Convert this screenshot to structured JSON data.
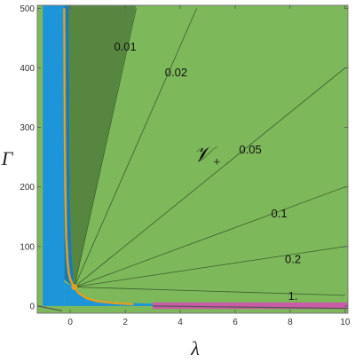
{
  "chart_data": {
    "type": "area",
    "title": "",
    "xlabel": "λ",
    "ylabel": "Γ",
    "xlim": [
      -1.2,
      10.1
    ],
    "ylim": [
      -12,
      505
    ],
    "x_ticks": [
      "0",
      "2",
      "4",
      "6",
      "8",
      "10"
    ],
    "y_ticks": [
      "0",
      "100",
      "200",
      "300",
      "400",
      "500"
    ],
    "grid": false,
    "colors": {
      "light_green": "#7db85a",
      "dark_green": "#568640",
      "blue": "#1d95d8",
      "dark_blue": "#1a7ab8",
      "magenta": "#c95ba7",
      "orange": "#e0a020",
      "contour": "#3b5e2c"
    },
    "region_label": {
      "main": "𝒱",
      "sub": "+"
    },
    "contours": [
      {
        "label": "0.01",
        "end": [
          2.4,
          500
        ],
        "label_at": [
          2.0,
          435
        ]
      },
      {
        "label": "0.02",
        "end": [
          4.6,
          500
        ],
        "label_at": [
          3.85,
          392
        ]
      },
      {
        "label": "0.05",
        "end": [
          10,
          400
        ],
        "label_at": [
          6.55,
          262
        ]
      },
      {
        "label": "0.1",
        "end": [
          10,
          200
        ],
        "label_at": [
          7.6,
          155
        ]
      },
      {
        "label": "0.2",
        "end": [
          10,
          100
        ],
        "label_at": [
          8.1,
          78
        ]
      },
      {
        "label": "1.",
        "end": [
          10,
          18
        ],
        "label_at": [
          8.1,
          16
        ]
      }
    ],
    "contour_origin": [
      0.15,
      32
    ],
    "boundary_curve": [
      [
        -0.22,
        500
      ],
      [
        -0.2,
        300
      ],
      [
        -0.18,
        200
      ],
      [
        -0.15,
        120
      ],
      [
        -0.1,
        75
      ],
      [
        -0.05,
        55
      ],
      [
        0.0,
        45
      ],
      [
        0.1,
        35
      ],
      [
        0.3,
        22
      ],
      [
        0.6,
        13
      ],
      [
        1.0,
        8
      ],
      [
        1.6,
        5
      ],
      [
        2.3,
        3
      ]
    ]
  }
}
